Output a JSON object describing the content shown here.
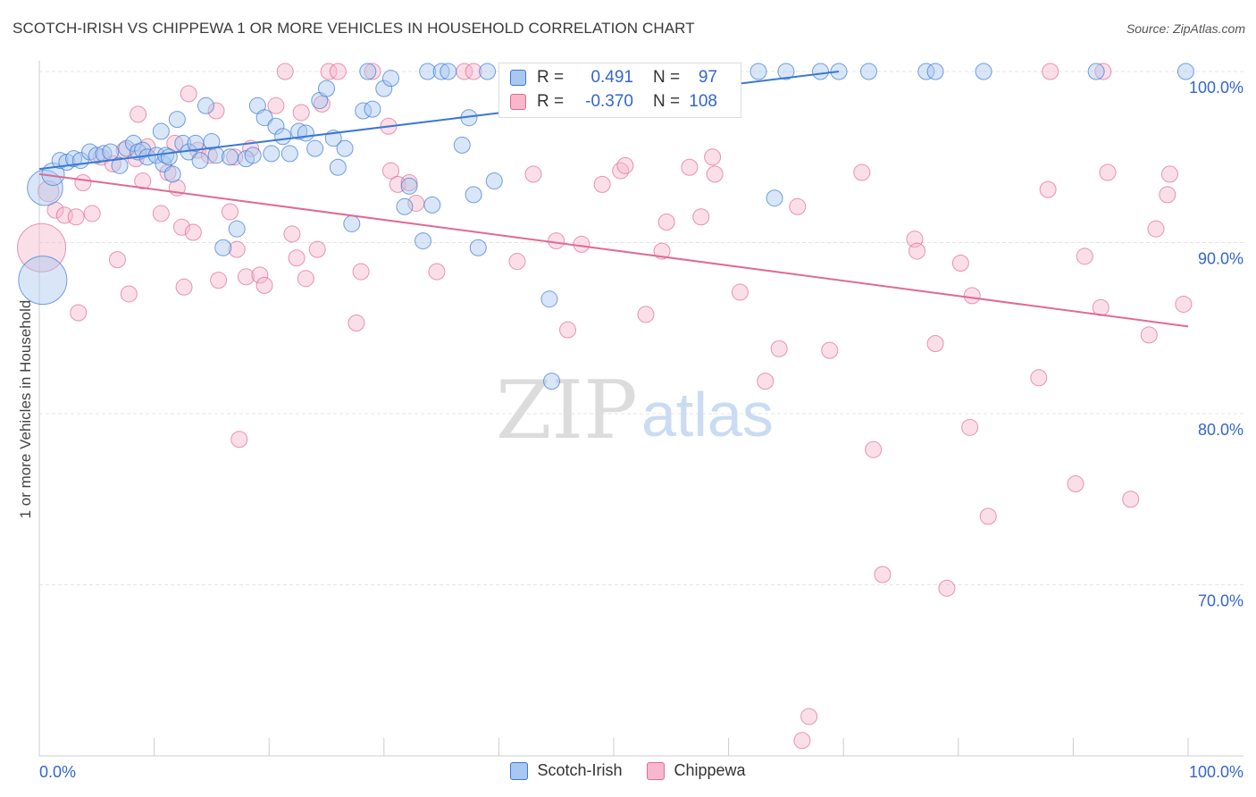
{
  "title": "SCOTCH-IRISH VS CHIPPEWA 1 OR MORE VEHICLES IN HOUSEHOLD CORRELATION CHART",
  "source": "Source: ZipAtlas.com",
  "watermark": {
    "zip": "ZIP",
    "atlas": "atlas"
  },
  "colors": {
    "blue": "#3a78d4",
    "blue_fill": "#a9c8f0",
    "pink": "#e06a94",
    "pink_fill": "#f7b8cc",
    "axis_label": "#3366cc"
  },
  "legend": {
    "rows": [
      {
        "r_label": "R =",
        "r_value": "0.491",
        "n_label": "N =",
        "n_value": "97"
      },
      {
        "r_label": "R =",
        "r_value": "-0.370",
        "n_label": "N =",
        "n_value": "108"
      }
    ],
    "series": [
      "Scotch-Irish",
      "Chippewa"
    ]
  },
  "chart_data": {
    "type": "scatter",
    "title": "SCOTCH-IRISH VS CHIPPEWA 1 OR MORE VEHICLES IN HOUSEHOLD CORRELATION CHART",
    "xlabel": "",
    "ylabel": "1 or more Vehicles in Household",
    "xlim": [
      0,
      100
    ],
    "ylim": [
      60,
      100
    ],
    "x_tick_labels": [
      "0.0%",
      "100.0%"
    ],
    "y_tick_labels": [
      "100.0%",
      "90.0%",
      "80.0%",
      "70.0%"
    ],
    "y_ticks": [
      100,
      90,
      80,
      70
    ],
    "grid": true,
    "legend_position": "top-center",
    "series": [
      {
        "name": "Scotch-Irish",
        "color": "#3a78d4",
        "r": 0.491,
        "n": 97,
        "trend": {
          "x": [
            0,
            69.6
          ],
          "y": [
            94.3,
            100.0
          ]
        },
        "points": [
          [
            0.5,
            93.2,
            2.2
          ],
          [
            0.3,
            87.8,
            3
          ],
          [
            1.2,
            94.0,
            1.4
          ],
          [
            1.8,
            94.8,
            1
          ],
          [
            2.4,
            94.7,
            1
          ],
          [
            3.0,
            94.9,
            1
          ],
          [
            3.6,
            94.8,
            1
          ],
          [
            4.4,
            95.3,
            1
          ],
          [
            5.0,
            95.1,
            1
          ],
          [
            5.6,
            95.2,
            1
          ],
          [
            6.2,
            95.3,
            1
          ],
          [
            7.0,
            94.5,
            1
          ],
          [
            7.6,
            95.5,
            1
          ],
          [
            8.2,
            95.8,
            1
          ],
          [
            8.6,
            95.3,
            1
          ],
          [
            9.0,
            95.4,
            1
          ],
          [
            9.4,
            95.0,
            1
          ],
          [
            10.2,
            95.1,
            1
          ],
          [
            10.6,
            96.5,
            1
          ],
          [
            10.8,
            94.6,
            1
          ],
          [
            11.0,
            95.1,
            1
          ],
          [
            11.3,
            95.0,
            1
          ],
          [
            11.6,
            94.0,
            1
          ],
          [
            12.0,
            97.2,
            1
          ],
          [
            12.5,
            95.8,
            1
          ],
          [
            13.0,
            95.3,
            1
          ],
          [
            13.6,
            95.8,
            1
          ],
          [
            14.0,
            94.8,
            1
          ],
          [
            14.5,
            98.0,
            1
          ],
          [
            15.0,
            95.9,
            1
          ],
          [
            15.4,
            95.1,
            1
          ],
          [
            16.0,
            89.7,
            1
          ],
          [
            16.6,
            95.0,
            1
          ],
          [
            17.2,
            90.8,
            1
          ],
          [
            18.0,
            94.9,
            1
          ],
          [
            18.6,
            95.1,
            1
          ],
          [
            19.0,
            98.0,
            1
          ],
          [
            19.6,
            97.3,
            1
          ],
          [
            20.2,
            95.2,
            1
          ],
          [
            20.6,
            96.8,
            1
          ],
          [
            21.2,
            96.2,
            1
          ],
          [
            21.8,
            95.2,
            1
          ],
          [
            22.6,
            96.5,
            1
          ],
          [
            23.2,
            96.4,
            1
          ],
          [
            24.0,
            95.5,
            1
          ],
          [
            24.4,
            98.3,
            1
          ],
          [
            25.0,
            99.0,
            1
          ],
          [
            25.6,
            96.1,
            1
          ],
          [
            26.0,
            94.4,
            1
          ],
          [
            26.6,
            95.5,
            1
          ],
          [
            27.2,
            91.1,
            1
          ],
          [
            28.2,
            97.7,
            1
          ],
          [
            28.6,
            100.0,
            1
          ],
          [
            29.0,
            97.8,
            1
          ],
          [
            30.0,
            99.0,
            1
          ],
          [
            30.6,
            99.6,
            1
          ],
          [
            31.8,
            92.1,
            1
          ],
          [
            32.2,
            93.3,
            1
          ],
          [
            33.4,
            90.1,
            1
          ],
          [
            33.8,
            100.0,
            1
          ],
          [
            34.2,
            92.2,
            1
          ],
          [
            35.0,
            100.0,
            1
          ],
          [
            35.6,
            100.0,
            1
          ],
          [
            36.8,
            95.7,
            1
          ],
          [
            37.4,
            97.3,
            1
          ],
          [
            37.8,
            92.8,
            1
          ],
          [
            38.2,
            89.7,
            1
          ],
          [
            39.0,
            100.0,
            1
          ],
          [
            39.6,
            93.6,
            1
          ],
          [
            41.6,
            98.3,
            1
          ],
          [
            42.2,
            100.0,
            1
          ],
          [
            42.8,
            100.0,
            1
          ],
          [
            43.2,
            98.9,
            1
          ],
          [
            43.6,
            100.0,
            1
          ],
          [
            44.4,
            86.7,
            1
          ],
          [
            44.6,
            81.9,
            1
          ],
          [
            45.2,
            100.0,
            1
          ],
          [
            45.8,
            100.0,
            1
          ],
          [
            46.6,
            100.0,
            1
          ],
          [
            47.6,
            100.0,
            1
          ],
          [
            48.8,
            100.0,
            1
          ],
          [
            50.4,
            100.0,
            1
          ],
          [
            52.4,
            100.0,
            1
          ],
          [
            54.8,
            100.0,
            1
          ],
          [
            60.2,
            100.0,
            1
          ],
          [
            62.6,
            100.0,
            1
          ],
          [
            64.0,
            92.6,
            1
          ],
          [
            65.0,
            100.0,
            1
          ],
          [
            68.0,
            100.0,
            1
          ],
          [
            69.6,
            100.0,
            1
          ],
          [
            72.2,
            100.0,
            1
          ],
          [
            77.2,
            100.0,
            1
          ],
          [
            78.0,
            100.0,
            1
          ],
          [
            82.2,
            100.0,
            1
          ],
          [
            92.0,
            100.0,
            1
          ],
          [
            99.8,
            100.0,
            1
          ],
          [
            58.2,
            99.0,
            1
          ]
        ]
      },
      {
        "name": "Chippewa",
        "color": "#e06a94",
        "r": -0.37,
        "n": 108,
        "trend": {
          "x": [
            0,
            100
          ],
          "y": [
            94.0,
            85.1
          ]
        },
        "points": [
          [
            0.2,
            89.7,
            3
          ],
          [
            0.8,
            93.0,
            1.3
          ],
          [
            1.4,
            91.9,
            1
          ],
          [
            2.2,
            91.6,
            1
          ],
          [
            3.2,
            91.5,
            1
          ],
          [
            3.4,
            85.9,
            1
          ],
          [
            3.8,
            93.5,
            1
          ],
          [
            4.6,
            91.7,
            1
          ],
          [
            5.4,
            95.0,
            1
          ],
          [
            6.4,
            94.6,
            1
          ],
          [
            6.8,
            89.0,
            1
          ],
          [
            7.4,
            95.4,
            1
          ],
          [
            7.8,
            87.0,
            1
          ],
          [
            8.4,
            94.9,
            1
          ],
          [
            8.6,
            97.5,
            1
          ],
          [
            9.0,
            93.6,
            1
          ],
          [
            9.4,
            95.6,
            1
          ],
          [
            10.6,
            91.7,
            1
          ],
          [
            11.2,
            94.1,
            1
          ],
          [
            11.8,
            95.8,
            1
          ],
          [
            12.0,
            93.2,
            1
          ],
          [
            12.4,
            90.9,
            1
          ],
          [
            12.6,
            87.4,
            1
          ],
          [
            13.0,
            98.7,
            1
          ],
          [
            13.4,
            90.6,
            1
          ],
          [
            13.8,
            95.4,
            1
          ],
          [
            14.8,
            95.1,
            1
          ],
          [
            15.4,
            97.7,
            1
          ],
          [
            15.6,
            87.8,
            1
          ],
          [
            16.6,
            91.8,
            1
          ],
          [
            17.0,
            95.0,
            1
          ],
          [
            17.2,
            89.6,
            1
          ],
          [
            17.4,
            78.5,
            1
          ],
          [
            18.0,
            88.0,
            1
          ],
          [
            18.4,
            95.5,
            1
          ],
          [
            19.2,
            88.1,
            1
          ],
          [
            19.6,
            87.5,
            1
          ],
          [
            20.6,
            98.0,
            1
          ],
          [
            21.4,
            100.0,
            1
          ],
          [
            22.0,
            90.5,
            1
          ],
          [
            22.4,
            89.1,
            1
          ],
          [
            22.8,
            97.6,
            1
          ],
          [
            23.2,
            87.9,
            1
          ],
          [
            24.2,
            89.6,
            1
          ],
          [
            24.6,
            98.1,
            1
          ],
          [
            25.2,
            100.0,
            1
          ],
          [
            26.0,
            100.0,
            1
          ],
          [
            27.6,
            85.3,
            1
          ],
          [
            28.0,
            88.3,
            1
          ],
          [
            29.0,
            100.0,
            1
          ],
          [
            30.4,
            96.8,
            1
          ],
          [
            30.6,
            94.2,
            1
          ],
          [
            31.2,
            93.4,
            1
          ],
          [
            32.2,
            93.5,
            1
          ],
          [
            32.8,
            92.3,
            1
          ],
          [
            34.6,
            88.3,
            1
          ],
          [
            37.0,
            100.0,
            1
          ],
          [
            37.8,
            100.0,
            1
          ],
          [
            41.6,
            88.9,
            1
          ],
          [
            43.0,
            94.0,
            1
          ],
          [
            45.0,
            90.1,
            1
          ],
          [
            46.0,
            84.9,
            1
          ],
          [
            47.2,
            89.9,
            1
          ],
          [
            49.0,
            93.4,
            1
          ],
          [
            50.6,
            94.2,
            1
          ],
          [
            51.0,
            94.5,
            1
          ],
          [
            52.8,
            85.8,
            1
          ],
          [
            54.2,
            89.5,
            1
          ],
          [
            54.6,
            91.2,
            1
          ],
          [
            56.6,
            94.4,
            1
          ],
          [
            57.6,
            91.5,
            1
          ],
          [
            58.6,
            95.0,
            1
          ],
          [
            58.8,
            94.0,
            1
          ],
          [
            61.0,
            87.1,
            1
          ],
          [
            63.2,
            81.9,
            1
          ],
          [
            64.4,
            83.8,
            1
          ],
          [
            66.0,
            92.1,
            1
          ],
          [
            66.4,
            60.9,
            1
          ],
          [
            67.0,
            62.3,
            1
          ],
          [
            68.8,
            83.7,
            1
          ],
          [
            71.6,
            94.1,
            1
          ],
          [
            72.6,
            77.9,
            1
          ],
          [
            73.4,
            70.6,
            1
          ],
          [
            76.2,
            90.2,
            1
          ],
          [
            76.4,
            89.5,
            1
          ],
          [
            78.0,
            84.1,
            1
          ],
          [
            79.0,
            69.8,
            1
          ],
          [
            80.2,
            88.8,
            1
          ],
          [
            81.0,
            79.2,
            1
          ],
          [
            81.2,
            86.9,
            1
          ],
          [
            82.6,
            74.0,
            1
          ],
          [
            87.0,
            82.1,
            1
          ],
          [
            87.8,
            93.1,
            1
          ],
          [
            88.0,
            100.0,
            1
          ],
          [
            90.2,
            75.9,
            1
          ],
          [
            91.0,
            89.2,
            1
          ],
          [
            92.4,
            86.2,
            1
          ],
          [
            92.6,
            100.0,
            1
          ],
          [
            93.0,
            94.1,
            1
          ],
          [
            95.0,
            75.0,
            1
          ],
          [
            96.6,
            84.6,
            1
          ],
          [
            97.2,
            90.8,
            1
          ],
          [
            98.2,
            92.8,
            1
          ],
          [
            98.4,
            94.0,
            1
          ],
          [
            99.6,
            86.4,
            1
          ],
          [
            56.0,
            100.0,
            1
          ],
          [
            48.0,
            100.0,
            1
          ],
          [
            44.0,
            100.0,
            1
          ]
        ]
      }
    ]
  }
}
